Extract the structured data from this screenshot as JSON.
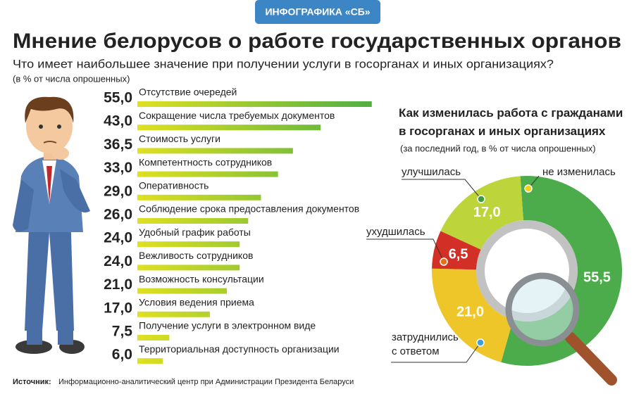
{
  "header": {
    "badge": "ИНФОГРАФИКА «СБ»",
    "title": "Мнение белорусов о работе государственных органов"
  },
  "source": {
    "label": "Источник:",
    "text": "Информационно-аналитический центр при Администрации Президента Беларуси"
  },
  "chart_data": [
    {
      "type": "bar",
      "orientation": "horizontal",
      "title": "Что имеет наибольшее значение при получении услуги в госорганах и иных организациях?",
      "subtitle": "(в % от числа опрошенных)",
      "categories": [
        "Отсутствие очередей",
        "Сокращение числа требуемых документов",
        "Стоимость услуги",
        "Компетентность сотрудников",
        "Оперативность",
        "Соблюдение срока предоставления документов",
        "Удобный график работы",
        "Вежливость сотрудников",
        "Возможность консультации",
        "Условия ведения приема",
        "Получение услуги в электронном виде",
        "Территориальная доступность организации"
      ],
      "values": [
        55,
        43,
        36.5,
        33,
        29,
        26,
        24,
        24,
        21,
        17,
        7.5,
        6
      ],
      "value_labels": [
        "55,0",
        "43,0",
        "36,5",
        "33,0",
        "29,0",
        "26,0",
        "24,0",
        "24,0",
        "21,0",
        "17,0",
        "7,5",
        "6,0"
      ],
      "color": "#dfe021",
      "color_end": "#4fae45"
    },
    {
      "type": "pie",
      "donut": true,
      "title": "Как изменилась работа с гражданами в госорганах и иных организациях",
      "subtitle": "(за последний год, в % от числа опрошенных)",
      "categories": [
        "не изменилась",
        "затруднились с ответом",
        "ухудшилась",
        "улучшилась"
      ],
      "values": [
        55.5,
        21,
        6.5,
        17
      ],
      "value_labels": [
        "55,5",
        "21,0",
        "6,5",
        "17,0"
      ],
      "colors": [
        "#4cab4a",
        "#efc62a",
        "#d22f26",
        "#bdd43a"
      ]
    }
  ]
}
